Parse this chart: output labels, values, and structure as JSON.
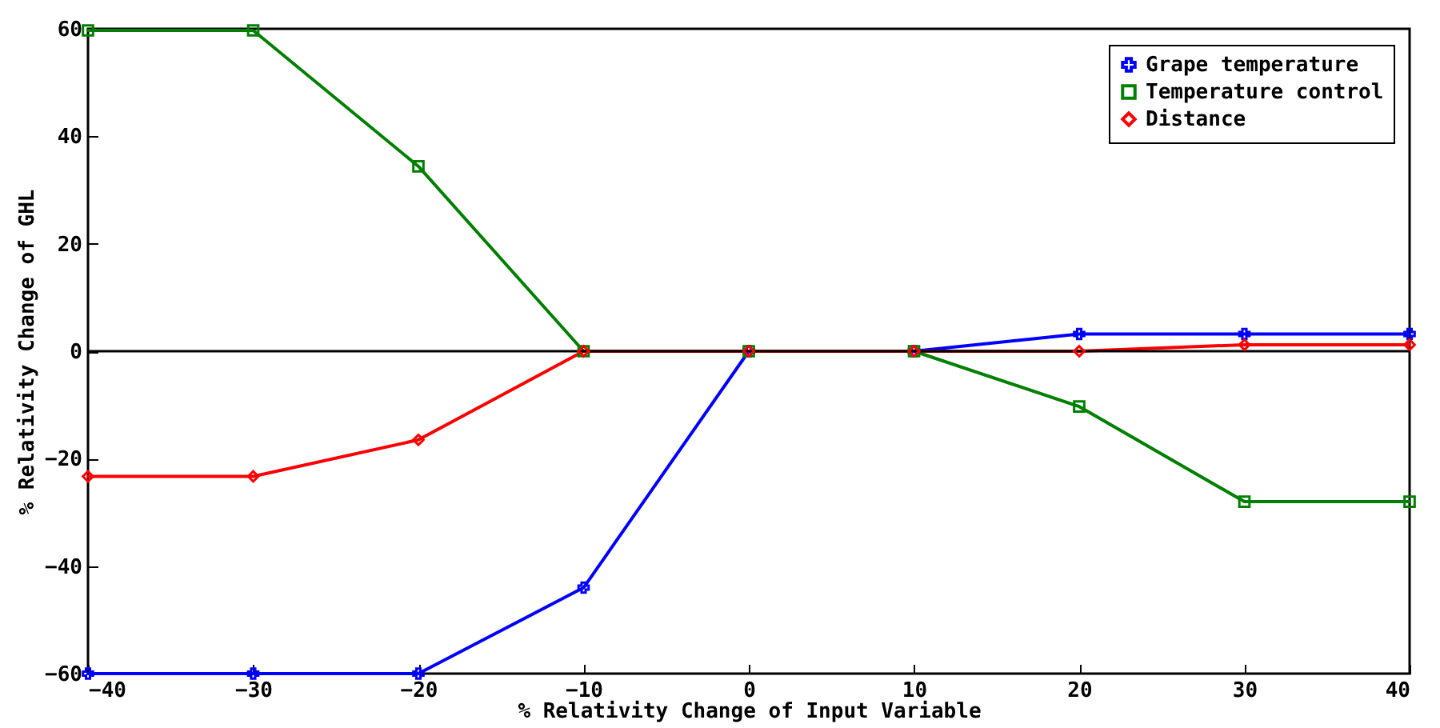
{
  "chart_data": {
    "type": "line",
    "xlabel": "% Relativity Change of Input Variable",
    "ylabel": "% Relativity Change of GHL",
    "x": [
      -40,
      -30,
      -20,
      -10,
      0,
      10,
      20,
      30,
      40
    ],
    "series": [
      {
        "name": "Grape temperature",
        "color": "#0000ff",
        "marker": "cross",
        "values": [
          -60,
          -60,
          -60,
          -44,
          0,
          0,
          3.2,
          3.2,
          3.2
        ]
      },
      {
        "name": "Temperature control",
        "color": "#008000",
        "marker": "square",
        "values": [
          59.7,
          59.7,
          34.4,
          0,
          0,
          0,
          -10.3,
          -28,
          -28
        ]
      },
      {
        "name": "Distance",
        "color": "#ff0000",
        "marker": "diamond",
        "values": [
          -23.3,
          -23.3,
          -16.5,
          0,
          0,
          0,
          0,
          1.2,
          1.2
        ]
      }
    ],
    "xlim": [
      -40,
      40
    ],
    "xticks": [
      -40,
      -30,
      -20,
      -10,
      0,
      10,
      20,
      30,
      40
    ],
    "ylim": [
      -60,
      60
    ],
    "yticks": [
      -60,
      -40,
      -20,
      0,
      20,
      40,
      60
    ],
    "ref_lines": [
      {
        "axis": "y",
        "value": 0,
        "color": "#000000"
      }
    ],
    "legend": "top right",
    "grid": false,
    "line_style": "solid"
  }
}
